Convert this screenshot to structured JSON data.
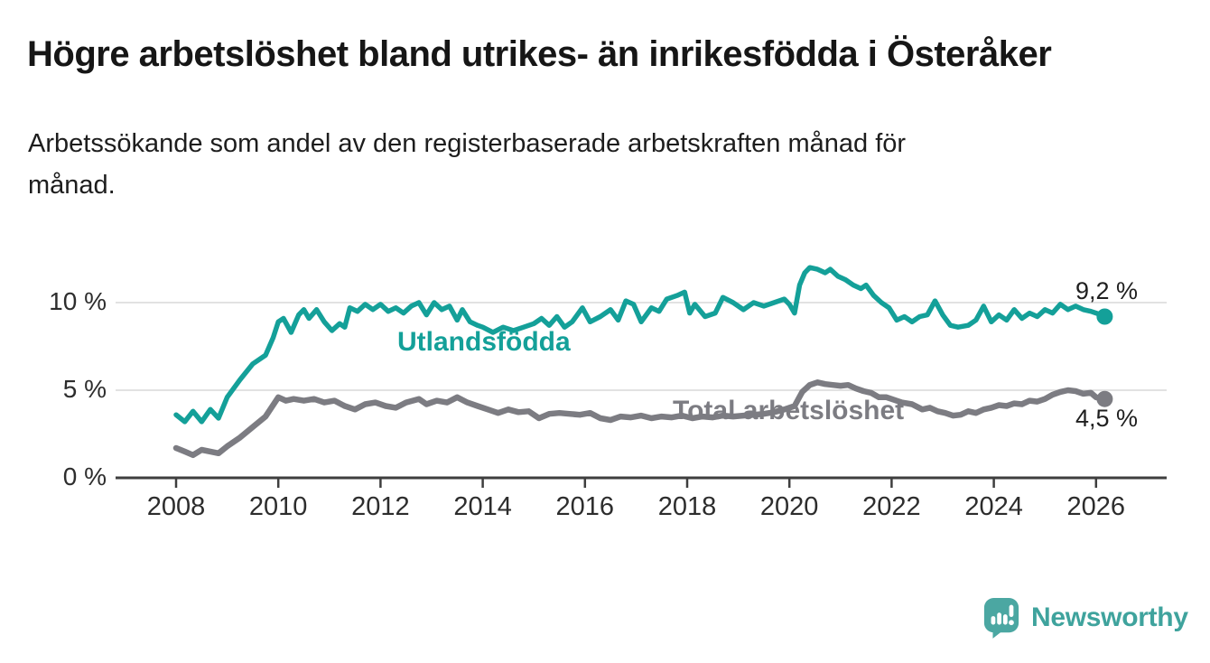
{
  "header": {
    "title": "Högre arbetslöshet bland utrikes- än inrikesfödda i Österåker",
    "subtitle_lines": [
      "Arbetssökande som andel av den registerbaserade arbetskraften månad för",
      "månad."
    ]
  },
  "chart_data": {
    "type": "line",
    "title": "Högre arbetslöshet bland utrikes- än inrikesfödda i Österåker",
    "subtitle": "Arbetssökande som andel av den registerbaserade arbetskraften månad för månad.",
    "grid": "horizontal-only",
    "x_axis": {
      "ticks": [
        2008,
        2010,
        2012,
        2014,
        2016,
        2018,
        2020,
        2022,
        2024,
        2026
      ],
      "range": [
        2006.8,
        2027.4
      ]
    },
    "y_axis": {
      "ticks": [
        0,
        5,
        10
      ],
      "tick_labels": [
        "0 %",
        "5 %",
        "10 %"
      ],
      "range": [
        0,
        12.5
      ],
      "unit": "%"
    },
    "series": [
      {
        "name": "Utlandsfödda",
        "color": "#14a099",
        "end_label": "9,2 %",
        "end_value": 9.2,
        "points": [
          [
            2008.0,
            3.6
          ],
          [
            2008.17,
            3.2
          ],
          [
            2008.33,
            3.8
          ],
          [
            2008.5,
            3.2
          ],
          [
            2008.67,
            3.9
          ],
          [
            2008.83,
            3.4
          ],
          [
            2009.0,
            4.6
          ],
          [
            2009.25,
            5.6
          ],
          [
            2009.5,
            6.5
          ],
          [
            2009.75,
            7.0
          ],
          [
            2009.9,
            8.0
          ],
          [
            2010.0,
            8.9
          ],
          [
            2010.1,
            9.1
          ],
          [
            2010.25,
            8.3
          ],
          [
            2010.4,
            9.3
          ],
          [
            2010.5,
            9.6
          ],
          [
            2010.6,
            9.1
          ],
          [
            2010.75,
            9.6
          ],
          [
            2010.9,
            8.9
          ],
          [
            2011.05,
            8.4
          ],
          [
            2011.2,
            8.8
          ],
          [
            2011.3,
            8.6
          ],
          [
            2011.4,
            9.7
          ],
          [
            2011.55,
            9.5
          ],
          [
            2011.7,
            9.9
          ],
          [
            2011.85,
            9.6
          ],
          [
            2012.0,
            9.9
          ],
          [
            2012.15,
            9.5
          ],
          [
            2012.3,
            9.7
          ],
          [
            2012.45,
            9.4
          ],
          [
            2012.6,
            9.8
          ],
          [
            2012.75,
            10.0
          ],
          [
            2012.9,
            9.3
          ],
          [
            2013.05,
            10.0
          ],
          [
            2013.2,
            9.6
          ],
          [
            2013.35,
            9.8
          ],
          [
            2013.5,
            9.0
          ],
          [
            2013.6,
            9.6
          ],
          [
            2013.75,
            8.9
          ],
          [
            2013.9,
            8.7
          ],
          [
            2014.0,
            8.6
          ],
          [
            2014.2,
            8.3
          ],
          [
            2014.4,
            8.6
          ],
          [
            2014.6,
            8.4
          ],
          [
            2014.8,
            8.6
          ],
          [
            2015.0,
            8.8
          ],
          [
            2015.15,
            9.1
          ],
          [
            2015.3,
            8.7
          ],
          [
            2015.45,
            9.2
          ],
          [
            2015.6,
            8.6
          ],
          [
            2015.75,
            8.9
          ],
          [
            2015.95,
            9.7
          ],
          [
            2016.1,
            8.9
          ],
          [
            2016.3,
            9.2
          ],
          [
            2016.5,
            9.6
          ],
          [
            2016.65,
            9.0
          ],
          [
            2016.8,
            10.1
          ],
          [
            2016.95,
            9.9
          ],
          [
            2017.1,
            8.9
          ],
          [
            2017.3,
            9.7
          ],
          [
            2017.45,
            9.5
          ],
          [
            2017.6,
            10.2
          ],
          [
            2017.8,
            10.4
          ],
          [
            2017.95,
            10.6
          ],
          [
            2018.05,
            9.4
          ],
          [
            2018.15,
            9.9
          ],
          [
            2018.35,
            9.2
          ],
          [
            2018.55,
            9.4
          ],
          [
            2018.7,
            10.3
          ],
          [
            2018.9,
            10.0
          ],
          [
            2019.1,
            9.6
          ],
          [
            2019.3,
            10.0
          ],
          [
            2019.5,
            9.8
          ],
          [
            2019.7,
            10.0
          ],
          [
            2019.9,
            10.2
          ],
          [
            2020.0,
            9.9
          ],
          [
            2020.1,
            9.4
          ],
          [
            2020.2,
            11.0
          ],
          [
            2020.3,
            11.7
          ],
          [
            2020.4,
            12.0
          ],
          [
            2020.55,
            11.9
          ],
          [
            2020.7,
            11.7
          ],
          [
            2020.8,
            11.9
          ],
          [
            2020.95,
            11.5
          ],
          [
            2021.1,
            11.3
          ],
          [
            2021.25,
            11.0
          ],
          [
            2021.4,
            10.8
          ],
          [
            2021.5,
            11.0
          ],
          [
            2021.65,
            10.4
          ],
          [
            2021.8,
            10.0
          ],
          [
            2021.95,
            9.7
          ],
          [
            2022.1,
            9.0
          ],
          [
            2022.25,
            9.2
          ],
          [
            2022.4,
            8.9
          ],
          [
            2022.55,
            9.2
          ],
          [
            2022.7,
            9.3
          ],
          [
            2022.85,
            10.1
          ],
          [
            2023.0,
            9.3
          ],
          [
            2023.15,
            8.7
          ],
          [
            2023.3,
            8.6
          ],
          [
            2023.5,
            8.7
          ],
          [
            2023.65,
            9.0
          ],
          [
            2023.8,
            9.8
          ],
          [
            2023.95,
            8.9
          ],
          [
            2024.1,
            9.3
          ],
          [
            2024.25,
            9.0
          ],
          [
            2024.4,
            9.6
          ],
          [
            2024.55,
            9.1
          ],
          [
            2024.7,
            9.4
          ],
          [
            2024.85,
            9.2
          ],
          [
            2025.0,
            9.6
          ],
          [
            2025.15,
            9.4
          ],
          [
            2025.3,
            9.9
          ],
          [
            2025.45,
            9.6
          ],
          [
            2025.6,
            9.8
          ],
          [
            2025.75,
            9.6
          ],
          [
            2025.9,
            9.5
          ],
          [
            2026.0,
            9.4
          ],
          [
            2026.17,
            9.2
          ]
        ]
      },
      {
        "name": "Total arbetslöshet",
        "color": "#7c7c82",
        "end_label": "4,5 %",
        "end_value": 4.5,
        "points": [
          [
            2008.0,
            1.7
          ],
          [
            2008.17,
            1.5
          ],
          [
            2008.33,
            1.3
          ],
          [
            2008.5,
            1.6
          ],
          [
            2008.67,
            1.5
          ],
          [
            2008.83,
            1.4
          ],
          [
            2009.0,
            1.8
          ],
          [
            2009.25,
            2.3
          ],
          [
            2009.5,
            2.9
          ],
          [
            2009.75,
            3.5
          ],
          [
            2010.0,
            4.6
          ],
          [
            2010.15,
            4.4
          ],
          [
            2010.3,
            4.5
          ],
          [
            2010.5,
            4.4
          ],
          [
            2010.7,
            4.5
          ],
          [
            2010.9,
            4.3
          ],
          [
            2011.1,
            4.4
          ],
          [
            2011.3,
            4.1
          ],
          [
            2011.5,
            3.9
          ],
          [
            2011.7,
            4.2
          ],
          [
            2011.9,
            4.3
          ],
          [
            2012.1,
            4.1
          ],
          [
            2012.3,
            4.0
          ],
          [
            2012.5,
            4.3
          ],
          [
            2012.75,
            4.5
          ],
          [
            2012.9,
            4.2
          ],
          [
            2013.1,
            4.4
          ],
          [
            2013.3,
            4.3
          ],
          [
            2013.5,
            4.6
          ],
          [
            2013.7,
            4.3
          ],
          [
            2013.9,
            4.1
          ],
          [
            2014.1,
            3.9
          ],
          [
            2014.3,
            3.7
          ],
          [
            2014.5,
            3.9
          ],
          [
            2014.7,
            3.75
          ],
          [
            2014.9,
            3.8
          ],
          [
            2015.1,
            3.4
          ],
          [
            2015.3,
            3.65
          ],
          [
            2015.5,
            3.7
          ],
          [
            2015.7,
            3.65
          ],
          [
            2015.9,
            3.6
          ],
          [
            2016.1,
            3.7
          ],
          [
            2016.3,
            3.4
          ],
          [
            2016.5,
            3.3
          ],
          [
            2016.7,
            3.5
          ],
          [
            2016.9,
            3.45
          ],
          [
            2017.1,
            3.55
          ],
          [
            2017.3,
            3.4
          ],
          [
            2017.5,
            3.5
          ],
          [
            2017.7,
            3.45
          ],
          [
            2017.9,
            3.55
          ],
          [
            2018.1,
            3.4
          ],
          [
            2018.3,
            3.5
          ],
          [
            2018.5,
            3.45
          ],
          [
            2018.7,
            3.55
          ],
          [
            2018.9,
            3.5
          ],
          [
            2019.1,
            3.55
          ],
          [
            2019.3,
            3.6
          ],
          [
            2019.5,
            3.65
          ],
          [
            2019.7,
            3.75
          ],
          [
            2019.9,
            3.9
          ],
          [
            2020.1,
            4.1
          ],
          [
            2020.25,
            4.9
          ],
          [
            2020.4,
            5.3
          ],
          [
            2020.55,
            5.45
          ],
          [
            2020.7,
            5.35
          ],
          [
            2020.85,
            5.3
          ],
          [
            2021.0,
            5.25
          ],
          [
            2021.15,
            5.3
          ],
          [
            2021.3,
            5.1
          ],
          [
            2021.45,
            4.95
          ],
          [
            2021.6,
            4.85
          ],
          [
            2021.75,
            4.6
          ],
          [
            2021.9,
            4.6
          ],
          [
            2022.05,
            4.45
          ],
          [
            2022.2,
            4.3
          ],
          [
            2022.4,
            4.2
          ],
          [
            2022.6,
            3.9
          ],
          [
            2022.75,
            4.0
          ],
          [
            2022.9,
            3.8
          ],
          [
            2023.05,
            3.7
          ],
          [
            2023.2,
            3.55
          ],
          [
            2023.35,
            3.6
          ],
          [
            2023.5,
            3.8
          ],
          [
            2023.65,
            3.7
          ],
          [
            2023.8,
            3.9
          ],
          [
            2023.95,
            4.0
          ],
          [
            2024.1,
            4.15
          ],
          [
            2024.25,
            4.1
          ],
          [
            2024.4,
            4.25
          ],
          [
            2024.55,
            4.2
          ],
          [
            2024.7,
            4.4
          ],
          [
            2024.85,
            4.35
          ],
          [
            2025.0,
            4.5
          ],
          [
            2025.15,
            4.75
          ],
          [
            2025.3,
            4.9
          ],
          [
            2025.45,
            5.0
          ],
          [
            2025.6,
            4.95
          ],
          [
            2025.75,
            4.8
          ],
          [
            2025.9,
            4.85
          ],
          [
            2026.0,
            4.6
          ],
          [
            2026.17,
            4.5
          ]
        ]
      }
    ],
    "legend_position": "inline-labels"
  },
  "footer": {
    "brand": "Newsworthy",
    "brand_color": "#3fa39d",
    "logo_mark_color": "#4ba7a2"
  }
}
